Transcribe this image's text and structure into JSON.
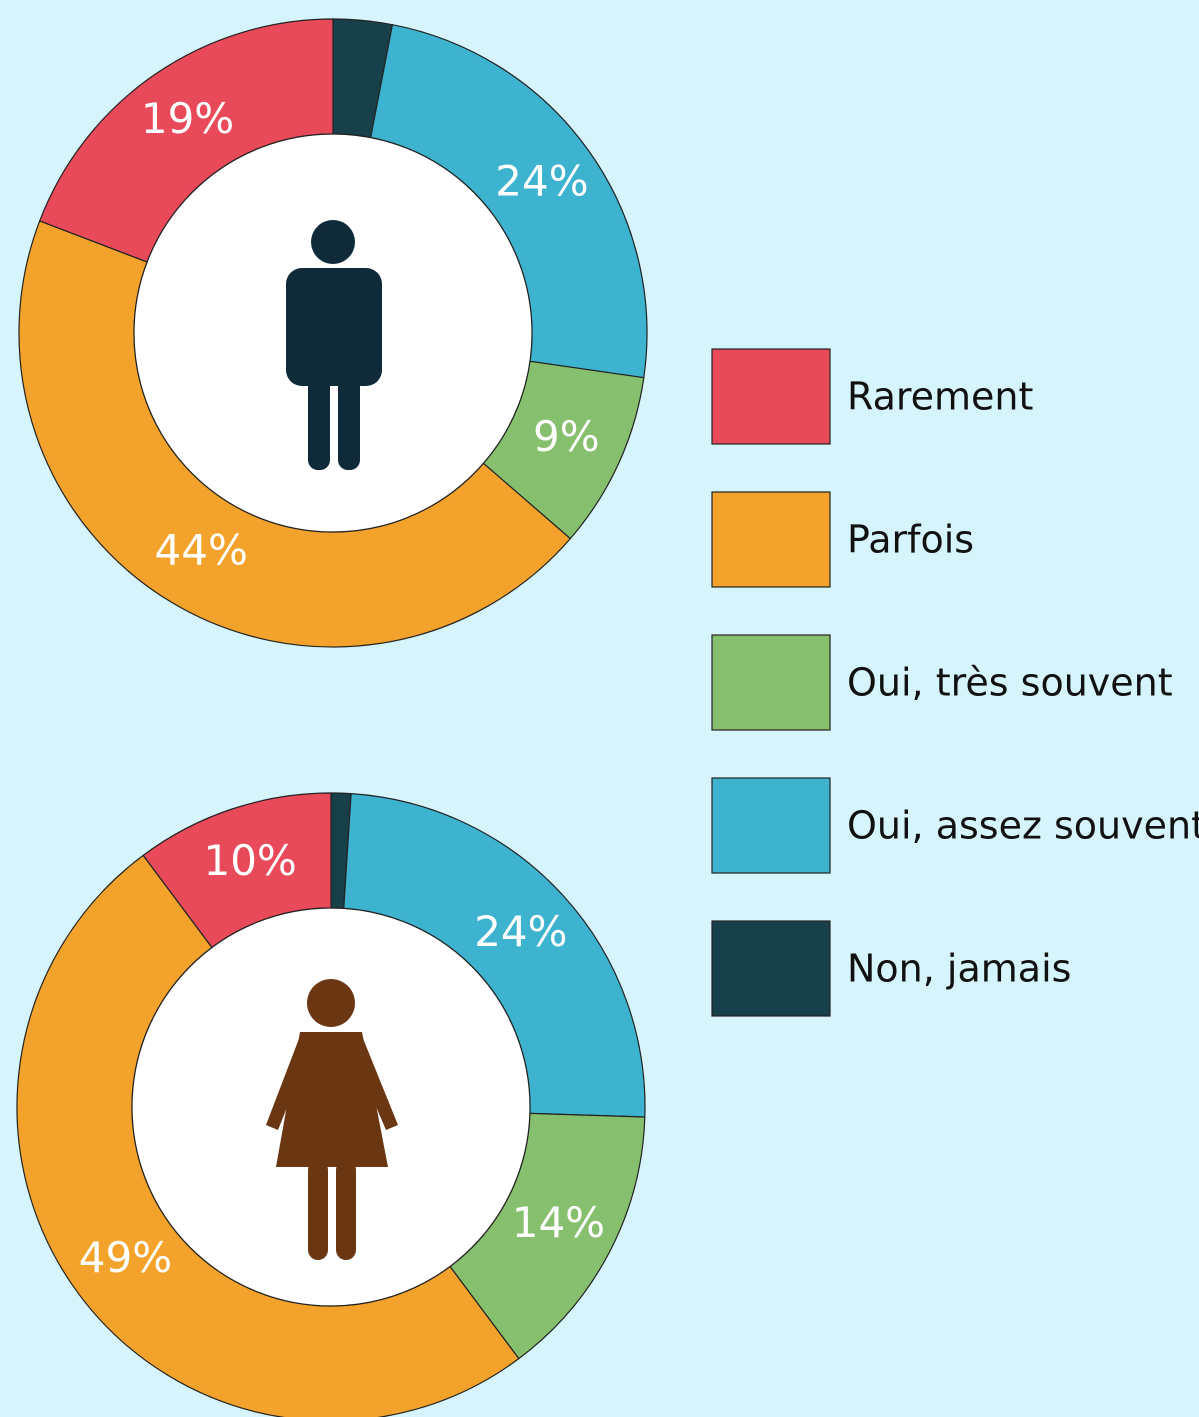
{
  "chart_data": [
    {
      "type": "pie",
      "categories": [
        "Rarement",
        "Parfois",
        "Oui, très souvent",
        "Oui, assez souvent",
        "Non, jamais"
      ],
      "values": [
        19,
        44,
        9,
        24,
        3
      ],
      "value_labels": [
        "19%",
        "44%",
        "9%",
        "24%",
        null
      ],
      "colors": [
        "#e84a5a",
        "#f3a32c",
        "#86c06e",
        "#3db3cf",
        "#17404b"
      ]
    },
    {
      "type": "pie",
      "categories": [
        "Rarement",
        "Parfois",
        "Oui, très souvent",
        "Oui, assez souvent",
        "Non, jamais"
      ],
      "values": [
        10,
        49,
        14,
        24,
        1
      ],
      "value_labels": [
        "10%",
        "49%",
        "14%",
        "24%",
        null
      ],
      "colors": [
        "#e84a5a",
        "#f3a32c",
        "#86c06e",
        "#3db3cf",
        "#17404b"
      ]
    }
  ]
}
